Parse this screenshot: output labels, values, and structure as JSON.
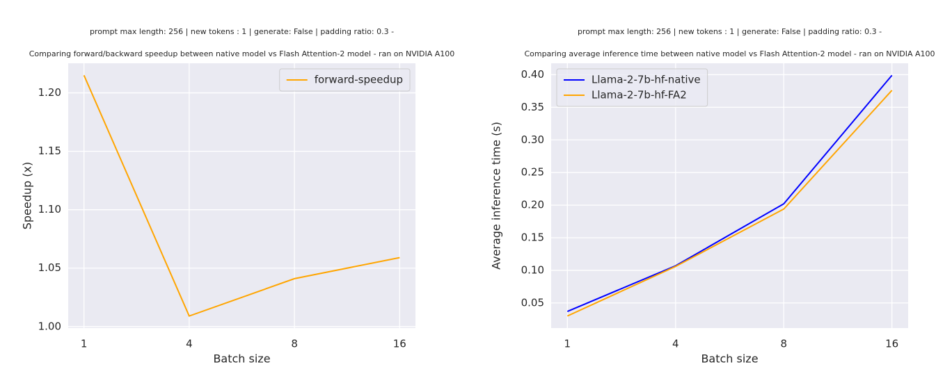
{
  "chart_data": [
    {
      "type": "line",
      "subtitle": "prompt max length: 256 | new tokens : 1 | generate: False | padding ratio: 0.3 -",
      "title": "Comparing forward/backward speedup between native model vs Flash Attention-2 model - ran on NVIDIA A100",
      "x_label": "Batch size",
      "y_label": "Speedup (x)",
      "categories": [
        "1",
        "4",
        "8",
        "16"
      ],
      "series": [
        {
          "name": "forward-speedup",
          "color": "#ffa500",
          "values": [
            1.215,
            1.009,
            1.041,
            1.059
          ]
        }
      ],
      "ylim": [
        0.9987,
        1.2253
      ],
      "yticks": [
        {
          "value": 1.0,
          "label": "1.00"
        },
        1.05,
        {
          "value": 1.1,
          "label": "1.10"
        },
        1.15,
        {
          "value": 1.2,
          "label": "1.20"
        }
      ],
      "grid": true,
      "legend": "upper right"
    },
    {
      "type": "line",
      "subtitle": "prompt max length: 256 | new tokens : 1 | generate: False | padding ratio: 0.3 -",
      "title": "Comparing average inference time between native model vs Flash Attention-2 model - ran on NVIDIA A100",
      "x_label": "Batch size",
      "y_label": "Average inference time (s)",
      "categories": [
        "1",
        "4",
        "8",
        "16"
      ],
      "series": [
        {
          "name": "Llama-2-7b-hf-native",
          "color": "#0000ff",
          "values": [
            0.037,
            0.107,
            0.202,
            0.399
          ]
        },
        {
          "name": "Llama-2-7b-hf-FA2",
          "color": "#ffa500",
          "values": [
            0.03,
            0.106,
            0.194,
            0.376
          ]
        }
      ],
      "ylim": [
        0.0115,
        0.4175
      ],
      "yticks": [
        0.05,
        {
          "value": 0.1,
          "label": "0.10"
        },
        0.15,
        {
          "value": 0.2,
          "label": "0.20"
        },
        0.25,
        {
          "value": 0.3,
          "label": "0.30"
        },
        0.35,
        {
          "value": 0.4,
          "label": "0.40"
        }
      ],
      "grid": true,
      "legend": "upper left"
    }
  ]
}
